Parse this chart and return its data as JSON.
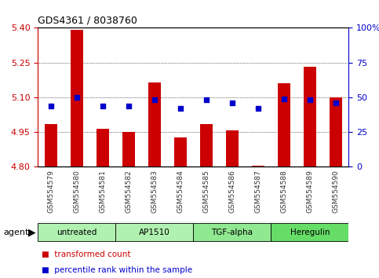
{
  "title": "GDS4361 / 8038760",
  "samples": [
    "GSM554579",
    "GSM554580",
    "GSM554581",
    "GSM554582",
    "GSM554583",
    "GSM554584",
    "GSM554585",
    "GSM554586",
    "GSM554587",
    "GSM554588",
    "GSM554589",
    "GSM554590"
  ],
  "bar_values": [
    4.985,
    5.39,
    4.965,
    4.952,
    5.165,
    4.928,
    4.985,
    4.957,
    4.805,
    5.16,
    5.232,
    5.1
  ],
  "percentile_values": [
    44,
    50,
    44,
    44,
    48,
    42,
    48,
    46,
    42,
    49,
    48,
    46
  ],
  "y_min": 4.8,
  "y_max": 5.4,
  "y_ticks_left": [
    4.8,
    4.95,
    5.1,
    5.25,
    5.4
  ],
  "y_ticks_right": [
    0,
    25,
    50,
    75,
    100
  ],
  "bar_color": "#cc0000",
  "dot_color": "#0000cc",
  "agent_groups": [
    {
      "label": "untreated",
      "start": 0,
      "end": 3,
      "color": "#b0f0b0"
    },
    {
      "label": "AP1510",
      "start": 3,
      "end": 6,
      "color": "#b0f0b0"
    },
    {
      "label": "TGF-alpha",
      "start": 6,
      "end": 9,
      "color": "#90e890"
    },
    {
      "label": "Heregulin",
      "start": 9,
      "end": 12,
      "color": "#66dd66"
    }
  ],
  "sample_bg_color": "#cccccc",
  "left_axis_color": "#cc0000",
  "right_axis_color": "#0000cc",
  "legend_red_label": "transformed count",
  "legend_blue_label": "percentile rank within the sample",
  "agent_label": "agent",
  "background_color": "#ffffff",
  "grid_color": "#000000"
}
